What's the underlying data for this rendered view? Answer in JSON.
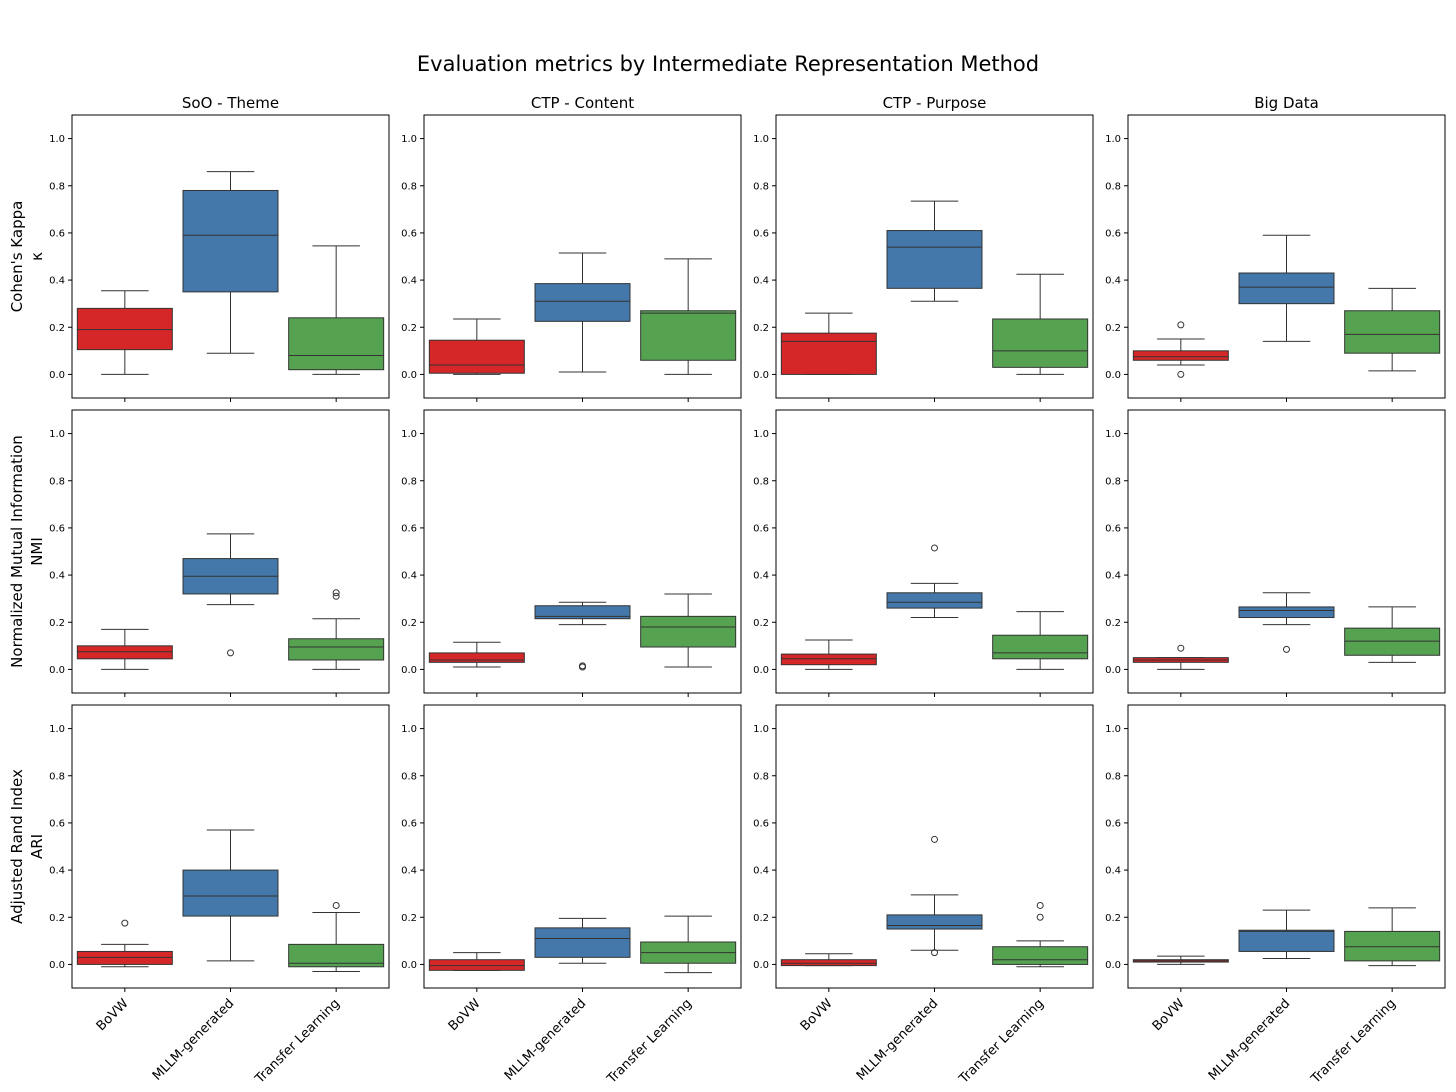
{
  "figure": {
    "title": "Evaluation metrics by Intermediate Representation Method"
  },
  "columns": [
    "SoO - Theme",
    "CTP - Content",
    "CTP - Purpose",
    "Big Data"
  ],
  "rows": [
    {
      "label": "Cohen's Kappa",
      "symbol": "κ"
    },
    {
      "label": "Normalized Mutual Information",
      "symbol": "NMI"
    },
    {
      "label": "Adjusted Rand Index",
      "symbol": "ARI"
    }
  ],
  "methods": [
    "BoVW",
    "MLLM-generated",
    "Transfer Learning"
  ],
  "colors": {
    "BoVW": "#d62728",
    "MLLM-generated": "#4477aa",
    "Transfer Learning": "#55a351",
    "median": "#333333",
    "whisker": "#333333"
  },
  "chart_data": {
    "type": "box",
    "ylim": [
      -0.1,
      1.1
    ],
    "yticks": [
      "0.0",
      "0.2",
      "0.4",
      "0.6",
      "0.8",
      "1.0"
    ],
    "grid": false,
    "panels": [
      {
        "row": "Cohen's Kappa",
        "column": "SoO - Theme",
        "boxes": [
          {
            "method": "BoVW",
            "whislo": 0.0,
            "q1": 0.105,
            "med": 0.19,
            "q3": 0.28,
            "whishi": 0.355,
            "fliers": []
          },
          {
            "method": "MLLM-generated",
            "whislo": 0.09,
            "q1": 0.35,
            "med": 0.59,
            "q3": 0.78,
            "whishi": 0.86,
            "fliers": []
          },
          {
            "method": "Transfer Learning",
            "whislo": 0.0,
            "q1": 0.02,
            "med": 0.08,
            "q3": 0.24,
            "whishi": 0.545,
            "fliers": []
          }
        ]
      },
      {
        "row": "Cohen's Kappa",
        "column": "CTP - Content",
        "boxes": [
          {
            "method": "BoVW",
            "whislo": 0.0,
            "q1": 0.005,
            "med": 0.04,
            "q3": 0.145,
            "whishi": 0.235,
            "fliers": []
          },
          {
            "method": "MLLM-generated",
            "whislo": 0.01,
            "q1": 0.225,
            "med": 0.31,
            "q3": 0.385,
            "whishi": 0.515,
            "fliers": []
          },
          {
            "method": "Transfer Learning",
            "whislo": 0.0,
            "q1": 0.06,
            "med": 0.26,
            "q3": 0.27,
            "whishi": 0.49,
            "fliers": []
          }
        ]
      },
      {
        "row": "Cohen's Kappa",
        "column": "CTP - Purpose",
        "boxes": [
          {
            "method": "BoVW",
            "whislo": 0.0,
            "q1": 0.0,
            "med": 0.14,
            "q3": 0.175,
            "whishi": 0.26,
            "fliers": []
          },
          {
            "method": "MLLM-generated",
            "whislo": 0.31,
            "q1": 0.365,
            "med": 0.54,
            "q3": 0.61,
            "whishi": 0.735,
            "fliers": []
          },
          {
            "method": "Transfer Learning",
            "whislo": 0.0,
            "q1": 0.03,
            "med": 0.1,
            "q3": 0.235,
            "whishi": 0.425,
            "fliers": []
          }
        ]
      },
      {
        "row": "Cohen's Kappa",
        "column": "Big Data",
        "boxes": [
          {
            "method": "BoVW",
            "whislo": 0.04,
            "q1": 0.06,
            "med": 0.075,
            "q3": 0.1,
            "whishi": 0.15,
            "fliers": [
              0.21,
              0.0
            ]
          },
          {
            "method": "MLLM-generated",
            "whislo": 0.14,
            "q1": 0.3,
            "med": 0.37,
            "q3": 0.43,
            "whishi": 0.59,
            "fliers": []
          },
          {
            "method": "Transfer Learning",
            "whislo": 0.015,
            "q1": 0.09,
            "med": 0.17,
            "q3": 0.27,
            "whishi": 0.365,
            "fliers": []
          }
        ]
      },
      {
        "row": "Normalized Mutual Information",
        "column": "SoO - Theme",
        "boxes": [
          {
            "method": "BoVW",
            "whislo": 0.0,
            "q1": 0.045,
            "med": 0.075,
            "q3": 0.1,
            "whishi": 0.17,
            "fliers": []
          },
          {
            "method": "MLLM-generated",
            "whislo": 0.275,
            "q1": 0.32,
            "med": 0.395,
            "q3": 0.47,
            "whishi": 0.575,
            "fliers": [
              0.07
            ]
          },
          {
            "method": "Transfer Learning",
            "whislo": 0.0,
            "q1": 0.04,
            "med": 0.095,
            "q3": 0.13,
            "whishi": 0.215,
            "fliers": [
              0.31,
              0.325
            ]
          }
        ]
      },
      {
        "row": "Normalized Mutual Information",
        "column": "CTP - Content",
        "boxes": [
          {
            "method": "BoVW",
            "whislo": 0.01,
            "q1": 0.03,
            "med": 0.04,
            "q3": 0.07,
            "whishi": 0.115,
            "fliers": []
          },
          {
            "method": "MLLM-generated",
            "whislo": 0.19,
            "q1": 0.215,
            "med": 0.225,
            "q3": 0.27,
            "whishi": 0.285,
            "fliers": [
              0.01,
              0.015
            ]
          },
          {
            "method": "Transfer Learning",
            "whislo": 0.01,
            "q1": 0.095,
            "med": 0.18,
            "q3": 0.225,
            "whishi": 0.32,
            "fliers": []
          }
        ]
      },
      {
        "row": "Normalized Mutual Information",
        "column": "CTP - Purpose",
        "boxes": [
          {
            "method": "BoVW",
            "whislo": 0.0,
            "q1": 0.02,
            "med": 0.045,
            "q3": 0.065,
            "whishi": 0.125,
            "fliers": []
          },
          {
            "method": "MLLM-generated",
            "whislo": 0.22,
            "q1": 0.26,
            "med": 0.285,
            "q3": 0.325,
            "whishi": 0.365,
            "fliers": [
              0.515
            ]
          },
          {
            "method": "Transfer Learning",
            "whislo": 0.0,
            "q1": 0.045,
            "med": 0.07,
            "q3": 0.145,
            "whishi": 0.245,
            "fliers": []
          }
        ]
      },
      {
        "row": "Normalized Mutual Information",
        "column": "Big Data",
        "boxes": [
          {
            "method": "BoVW",
            "whislo": 0.0,
            "q1": 0.03,
            "med": 0.04,
            "q3": 0.05,
            "whishi": 0.05,
            "fliers": [
              0.09
            ]
          },
          {
            "method": "MLLM-generated",
            "whislo": 0.19,
            "q1": 0.22,
            "med": 0.25,
            "q3": 0.265,
            "whishi": 0.325,
            "fliers": [
              0.085
            ]
          },
          {
            "method": "Transfer Learning",
            "whislo": 0.03,
            "q1": 0.06,
            "med": 0.12,
            "q3": 0.175,
            "whishi": 0.265,
            "fliers": []
          }
        ]
      },
      {
        "row": "Adjusted Rand Index",
        "column": "SoO - Theme",
        "boxes": [
          {
            "method": "BoVW",
            "whislo": -0.01,
            "q1": 0.0,
            "med": 0.03,
            "q3": 0.055,
            "whishi": 0.085,
            "fliers": [
              0.175
            ]
          },
          {
            "method": "MLLM-generated",
            "whislo": 0.015,
            "q1": 0.205,
            "med": 0.29,
            "q3": 0.4,
            "whishi": 0.57,
            "fliers": []
          },
          {
            "method": "Transfer Learning",
            "whislo": -0.03,
            "q1": -0.01,
            "med": 0.005,
            "q3": 0.085,
            "whishi": 0.22,
            "fliers": [
              0.25
            ]
          }
        ]
      },
      {
        "row": "Adjusted Rand Index",
        "column": "CTP - Content",
        "boxes": [
          {
            "method": "BoVW",
            "whislo": -0.025,
            "q1": -0.025,
            "med": -0.005,
            "q3": 0.02,
            "whishi": 0.05,
            "fliers": []
          },
          {
            "method": "MLLM-generated",
            "whislo": 0.005,
            "q1": 0.03,
            "med": 0.11,
            "q3": 0.155,
            "whishi": 0.195,
            "fliers": []
          },
          {
            "method": "Transfer Learning",
            "whislo": -0.035,
            "q1": 0.005,
            "med": 0.05,
            "q3": 0.095,
            "whishi": 0.205,
            "fliers": []
          }
        ]
      },
      {
        "row": "Adjusted Rand Index",
        "column": "CTP - Purpose",
        "boxes": [
          {
            "method": "BoVW",
            "whislo": -0.005,
            "q1": -0.005,
            "med": 0.005,
            "q3": 0.02,
            "whishi": 0.045,
            "fliers": []
          },
          {
            "method": "MLLM-generated",
            "whislo": 0.06,
            "q1": 0.15,
            "med": 0.165,
            "q3": 0.21,
            "whishi": 0.295,
            "fliers": [
              0.53,
              0.05
            ]
          },
          {
            "method": "Transfer Learning",
            "whislo": -0.01,
            "q1": 0.0,
            "med": 0.02,
            "q3": 0.075,
            "whishi": 0.1,
            "fliers": [
              0.2,
              0.25
            ]
          }
        ]
      },
      {
        "row": "Adjusted Rand Index",
        "column": "Big Data",
        "boxes": [
          {
            "method": "BoVW",
            "whislo": 0.0,
            "q1": 0.01,
            "med": 0.015,
            "q3": 0.02,
            "whishi": 0.035,
            "fliers": []
          },
          {
            "method": "MLLM-generated",
            "whislo": 0.025,
            "q1": 0.055,
            "med": 0.14,
            "q3": 0.145,
            "whishi": 0.23,
            "fliers": []
          },
          {
            "method": "Transfer Learning",
            "whislo": -0.005,
            "q1": 0.015,
            "med": 0.075,
            "q3": 0.14,
            "whishi": 0.24,
            "fliers": []
          }
        ]
      }
    ]
  }
}
